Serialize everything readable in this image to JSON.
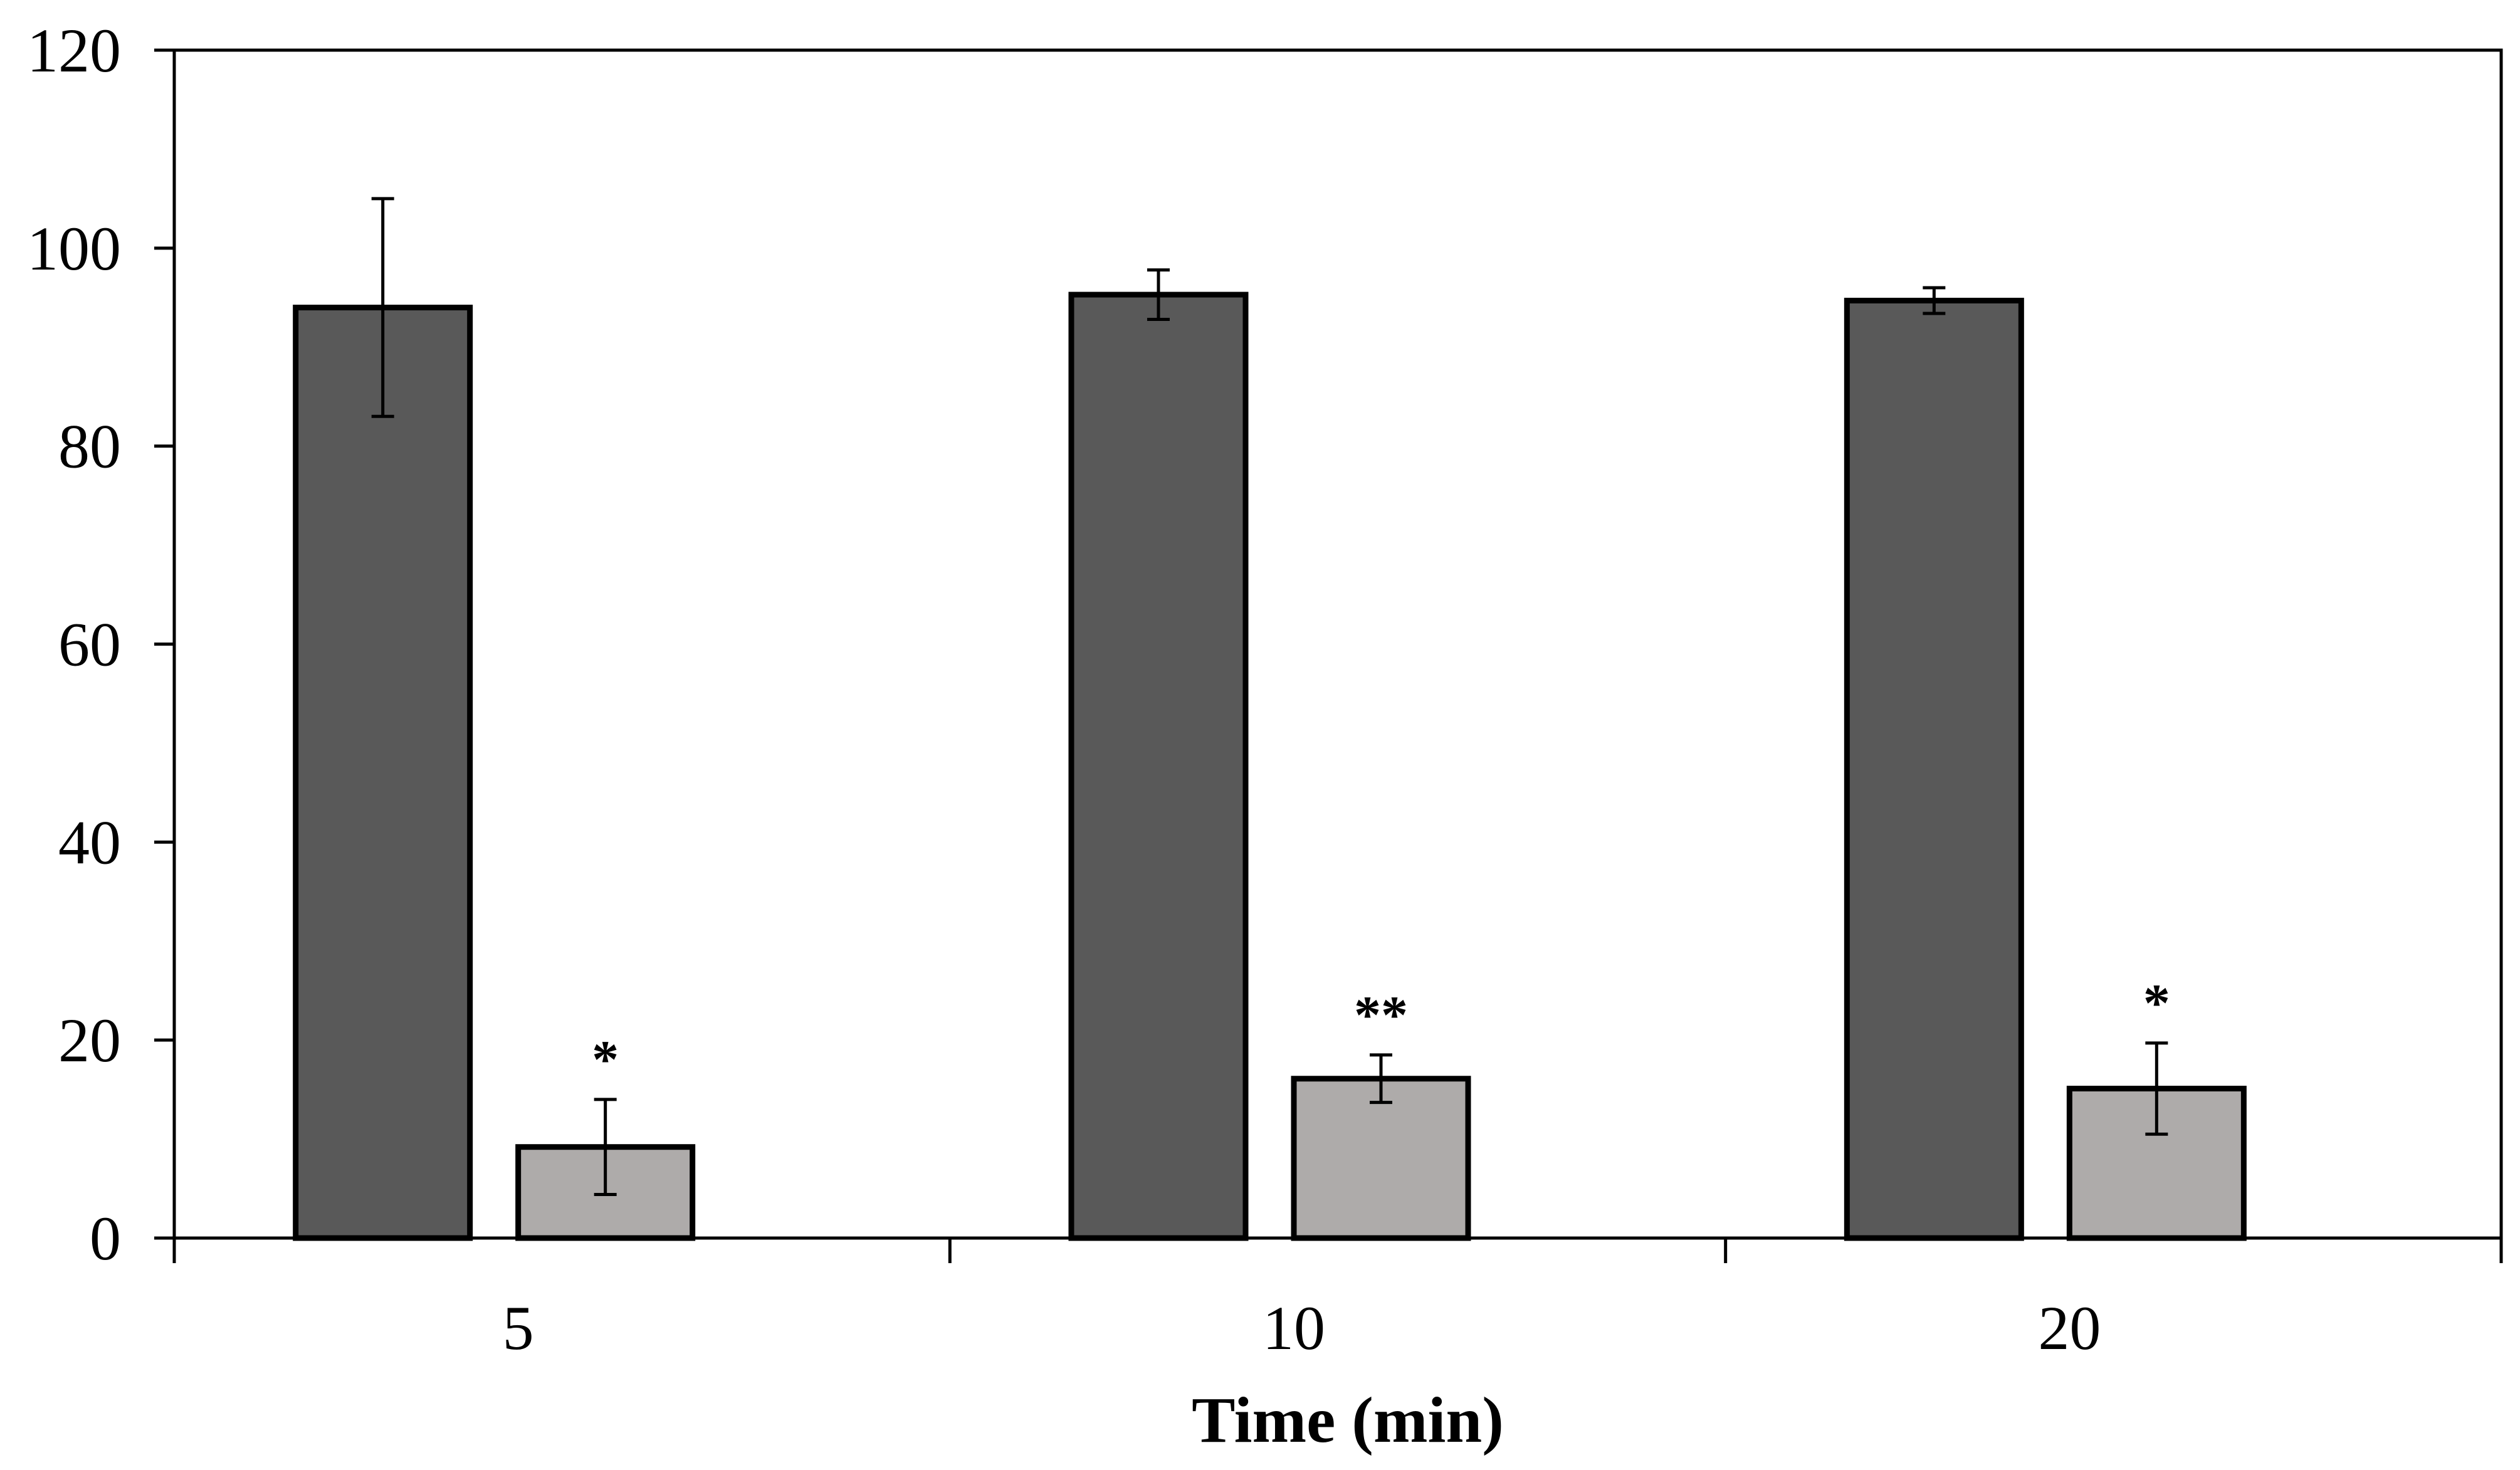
{
  "chart_data": {
    "type": "bar",
    "title": "",
    "xlabel": "Time (min)",
    "ylabel": "",
    "ylim": [
      0,
      120
    ],
    "yticks": [
      0,
      20,
      40,
      60,
      80,
      100,
      120
    ],
    "categories": [
      "5",
      "10",
      "20"
    ],
    "series": [
      {
        "name": "series-1",
        "color": "#595959",
        "values": [
          94,
          95.3,
          94.7
        ],
        "errors": [
          11,
          2.5,
          1.3
        ],
        "annotations": [
          "",
          "",
          ""
        ]
      },
      {
        "name": "series-2",
        "color": "#aeabaa",
        "values": [
          9.2,
          16.1,
          15.1
        ],
        "errors": [
          4.8,
          2.4,
          4.6
        ],
        "annotations": [
          "*",
          "**",
          "*"
        ]
      }
    ],
    "grid": false,
    "legend": "none"
  }
}
